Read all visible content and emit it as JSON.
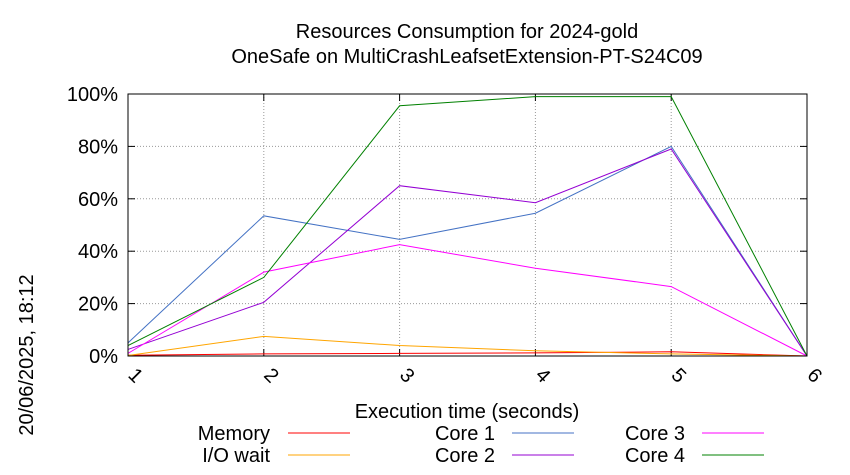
{
  "timestamp": "20/06/2025, 18:12",
  "chart_data": {
    "type": "line",
    "title": "Resources Consumption for 2024-gold",
    "subtitle": "OneSafe on MultiCrashLeafsetExtension-PT-S24C09",
    "xlabel": "Execution time (seconds)",
    "ylabel": "",
    "x": [
      1,
      2,
      3,
      4,
      5,
      6
    ],
    "xlim": [
      1,
      6
    ],
    "ylim": [
      0,
      100
    ],
    "x_ticks": [
      "1",
      "2",
      "3",
      "4",
      "5",
      "6"
    ],
    "y_ticks": [
      {
        "value": 0,
        "label": "0%"
      },
      {
        "value": 20,
        "label": "20%"
      },
      {
        "value": 40,
        "label": "40%"
      },
      {
        "value": 60,
        "label": "60%"
      },
      {
        "value": 80,
        "label": "80%"
      },
      {
        "value": 100,
        "label": "100%"
      }
    ],
    "grid": true,
    "legend_position": "bottom",
    "series": [
      {
        "name": "Memory",
        "color": "#ff0000",
        "values": [
          0.3,
          0.8,
          1.0,
          1.2,
          1.6,
          0
        ]
      },
      {
        "name": "I/O wait",
        "color": "#ffa500",
        "values": [
          0.2,
          7.5,
          4.0,
          2.0,
          0.8,
          0
        ]
      },
      {
        "name": "Core 1",
        "color": "#4472c4",
        "values": [
          5,
          53.5,
          44.5,
          54.5,
          80,
          0
        ]
      },
      {
        "name": "Core 2",
        "color": "#9400d3",
        "values": [
          2.5,
          20.5,
          65,
          58.5,
          79,
          0
        ]
      },
      {
        "name": "Core 3",
        "color": "#ff00ff",
        "values": [
          1,
          32,
          42.5,
          33.5,
          26.5,
          0
        ]
      },
      {
        "name": "Core 4",
        "color": "#008000",
        "values": [
          4,
          30,
          95.5,
          99,
          99,
          0
        ]
      }
    ]
  }
}
